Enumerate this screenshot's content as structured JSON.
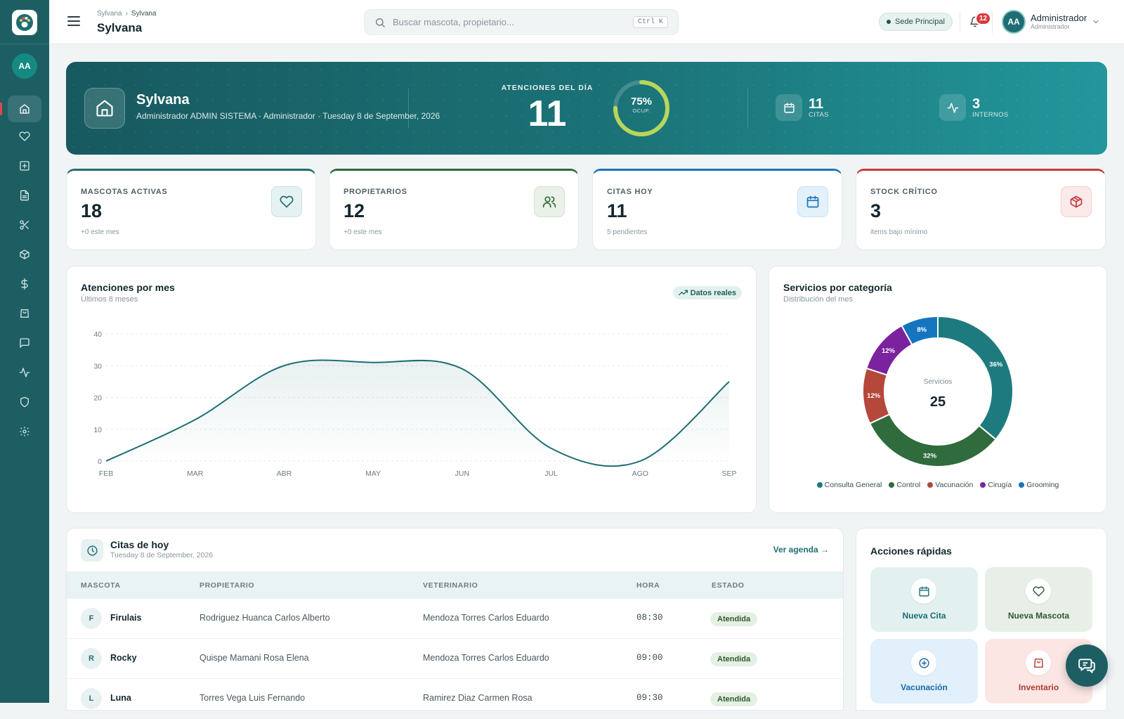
{
  "app": {
    "name": "Sylvana"
  },
  "sidebar": {
    "avatar_initials": "AA",
    "items": [
      {
        "icon": "home-icon",
        "active": true
      },
      {
        "icon": "heart-icon"
      },
      {
        "icon": "medical-plus-icon"
      },
      {
        "icon": "document-icon"
      },
      {
        "icon": "scissors-icon"
      },
      {
        "icon": "box-icon"
      },
      {
        "icon": "dollar-icon"
      },
      {
        "icon": "shopping-bag-icon"
      },
      {
        "icon": "chat-icon"
      },
      {
        "icon": "activity-icon"
      },
      {
        "icon": "shield-icon"
      },
      {
        "icon": "settings-icon"
      }
    ]
  },
  "header": {
    "breadcrumb": [
      "Sylvana",
      "Sylvana"
    ],
    "title": "Sylvana",
    "search_placeholder": "Buscar mascota, propietario...",
    "search_shortcut": "Ctrl K",
    "branch": "Sede Principal",
    "notifications": "12",
    "user": {
      "initials": "AA",
      "name": "Administrador",
      "role": "Administrador"
    }
  },
  "hero": {
    "name": "Sylvana",
    "subtitle": "Administrador ADMIN SISTEMA · Administrador · Tuesday 8 de September, 2026",
    "attentions_label": "ATENCIONES DEL DÍA",
    "attentions_value": "11",
    "occupancy_value": "75%",
    "occupancy_fraction": 0.75,
    "occupancy_label": "OCUP.",
    "stat1": {
      "value": "11",
      "label": "CITAS",
      "icon": "calendar-icon"
    },
    "stat2": {
      "value": "3",
      "label": "INTERNOS",
      "icon": "activity-icon"
    }
  },
  "kpis": [
    {
      "label": "MASCOTAS ACTIVAS",
      "value": "18",
      "footer": "+0 este mes",
      "icon": "heart-icon",
      "color": "#1d6e73"
    },
    {
      "label": "PROPIETARIOS",
      "value": "12",
      "footer": "+0 este mes",
      "icon": "users-icon",
      "color": "#2e6b3a"
    },
    {
      "label": "CITAS HOY",
      "value": "11",
      "footer": "5 pendientes",
      "icon": "calendar-icon",
      "color": "#1b74b8"
    },
    {
      "label": "STOCK CRÍTICO",
      "value": "3",
      "footer": "items bajo mínimo",
      "icon": "box-icon",
      "color": "#c43a3a"
    }
  ],
  "line_chart": {
    "title": "Atenciones por mes",
    "subtitle": "Últimos 8 meses",
    "badge": "Datos reales"
  },
  "donut_chart": {
    "title": "Servicios por categoría",
    "subtitle": "Distribución del mes",
    "center_label": "Servicios",
    "center_value": "25"
  },
  "chart_data": [
    {
      "type": "line",
      "title": "Atenciones por mes",
      "subtitle": "Últimos 8 meses",
      "categories": [
        "FEB",
        "MAR",
        "ABR",
        "MAY",
        "JUN",
        "JUL",
        "AGO",
        "SEP"
      ],
      "values": [
        0,
        13,
        30,
        31,
        29,
        4,
        0,
        25
      ],
      "ylim": [
        0,
        40
      ],
      "yticks": [
        0,
        10,
        20,
        30,
        40
      ],
      "color": "#1d6e73",
      "grid": true
    },
    {
      "type": "pie",
      "title": "Servicios por categoría",
      "subtitle": "Distribución del mes",
      "total": 25,
      "slices": [
        {
          "name": "Consulta General",
          "value": 36,
          "label": "36%",
          "color": "#1d7b7f"
        },
        {
          "name": "Control",
          "value": 32,
          "label": "32%",
          "color": "#2f6b3c"
        },
        {
          "name": "Vacunación",
          "value": 12,
          "label": "12%",
          "color": "#b5473b"
        },
        {
          "name": "Cirugía",
          "value": 12,
          "label": "12%",
          "color": "#7b239f"
        },
        {
          "name": "Grooming",
          "value": 8,
          "label": "8%",
          "color": "#1574c0"
        }
      ],
      "legend": "bottom"
    }
  ],
  "appointments": {
    "title": "Citas de hoy",
    "subtitle": "Tuesday 8 de September, 2026",
    "link": "Ver agenda →",
    "columns": [
      "MASCOTA",
      "PROPIETARIO",
      "VETERINARIO",
      "HORA",
      "ESTADO"
    ],
    "rows": [
      {
        "initial": "F",
        "pet": "Firulais",
        "owner": "Rodriguez Huanca Carlos Alberto",
        "vet": "Mendoza Torres Carlos Eduardo",
        "time": "08:30",
        "status": "Atendida"
      },
      {
        "initial": "R",
        "pet": "Rocky",
        "owner": "Quispe Mamani Rosa Elena",
        "vet": "Mendoza Torres Carlos Eduardo",
        "time": "09:00",
        "status": "Atendida"
      },
      {
        "initial": "L",
        "pet": "Luna",
        "owner": "Torres Vega Luis Fernando",
        "vet": "Ramirez Diaz Carmen Rosa",
        "time": "09:30",
        "status": "Atendida"
      }
    ]
  },
  "quick_actions": {
    "title": "Acciones rápidas",
    "items": [
      {
        "label": "Nueva Cita",
        "icon": "calendar-icon",
        "bg": "#e3f0f0",
        "color": "#1d6e73"
      },
      {
        "label": "Nueva Mascota",
        "icon": "heart-icon",
        "bg": "#e8efe6",
        "color": "#2e5a34"
      },
      {
        "label": "Vacunación",
        "icon": "plus-circle-icon",
        "bg": "#e1f0fa",
        "color": "#1a6aa8"
      },
      {
        "label": "Inventario",
        "icon": "shopping-bag-icon",
        "bg": "#fbe6e4",
        "color": "#b23a36"
      }
    ]
  }
}
